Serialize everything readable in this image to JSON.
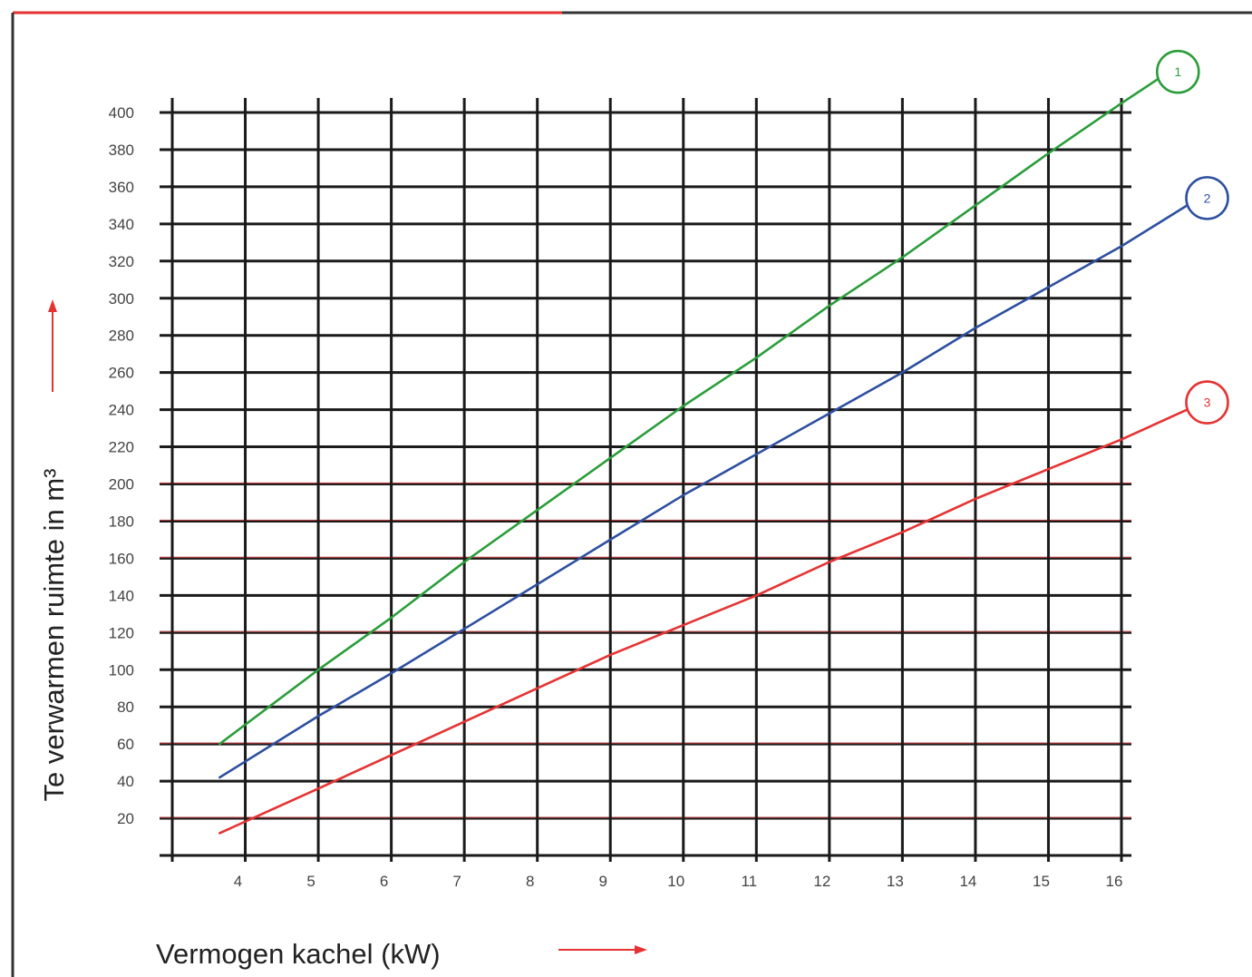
{
  "chart_data": {
    "type": "line",
    "title": "",
    "xlabel": "Vermogen kachel (kW)",
    "ylabel": "Te verwarmen ruimte in m³",
    "xlim": [
      3,
      16
    ],
    "ylim": [
      0,
      400
    ],
    "x_ticks": [
      4,
      5,
      6,
      7,
      8,
      9,
      10,
      11,
      12,
      13,
      14,
      15,
      16
    ],
    "y_ticks": [
      20,
      40,
      60,
      80,
      100,
      120,
      140,
      160,
      180,
      200,
      220,
      240,
      260,
      280,
      300,
      320,
      340,
      360,
      380,
      400
    ],
    "grid": true,
    "series": [
      {
        "name": "1",
        "color": "#2a9d3a",
        "x": [
          3.65,
          5,
          6,
          7,
          8,
          9,
          10,
          11,
          12,
          13,
          14,
          15,
          16,
          16.5
        ],
        "y": [
          60,
          100,
          128,
          158,
          186,
          214,
          242,
          268,
          296,
          322,
          350,
          378,
          405,
          418
        ]
      },
      {
        "name": "2",
        "color": "#2d4fa0",
        "x": [
          3.65,
          5,
          6,
          7,
          8,
          9,
          10,
          11,
          12,
          13,
          14,
          15,
          16,
          16.9
        ],
        "y": [
          42,
          75,
          98,
          122,
          146,
          170,
          194,
          216,
          238,
          260,
          284,
          306,
          328,
          350
        ]
      },
      {
        "name": "3",
        "color": "#e53333",
        "x": [
          3.65,
          5,
          6,
          7,
          8,
          9,
          10,
          11,
          12,
          13,
          14,
          15,
          16,
          16.9
        ],
        "y": [
          12,
          36,
          54,
          72,
          90,
          108,
          124,
          140,
          158,
          174,
          192,
          208,
          224,
          240
        ]
      }
    ]
  },
  "colors": {
    "grid_black": "#1a1a1a",
    "grid_red": "#d64545",
    "frame_dark": "#333333",
    "frame_red": "#e53333",
    "arrow_red": "#e53333"
  }
}
